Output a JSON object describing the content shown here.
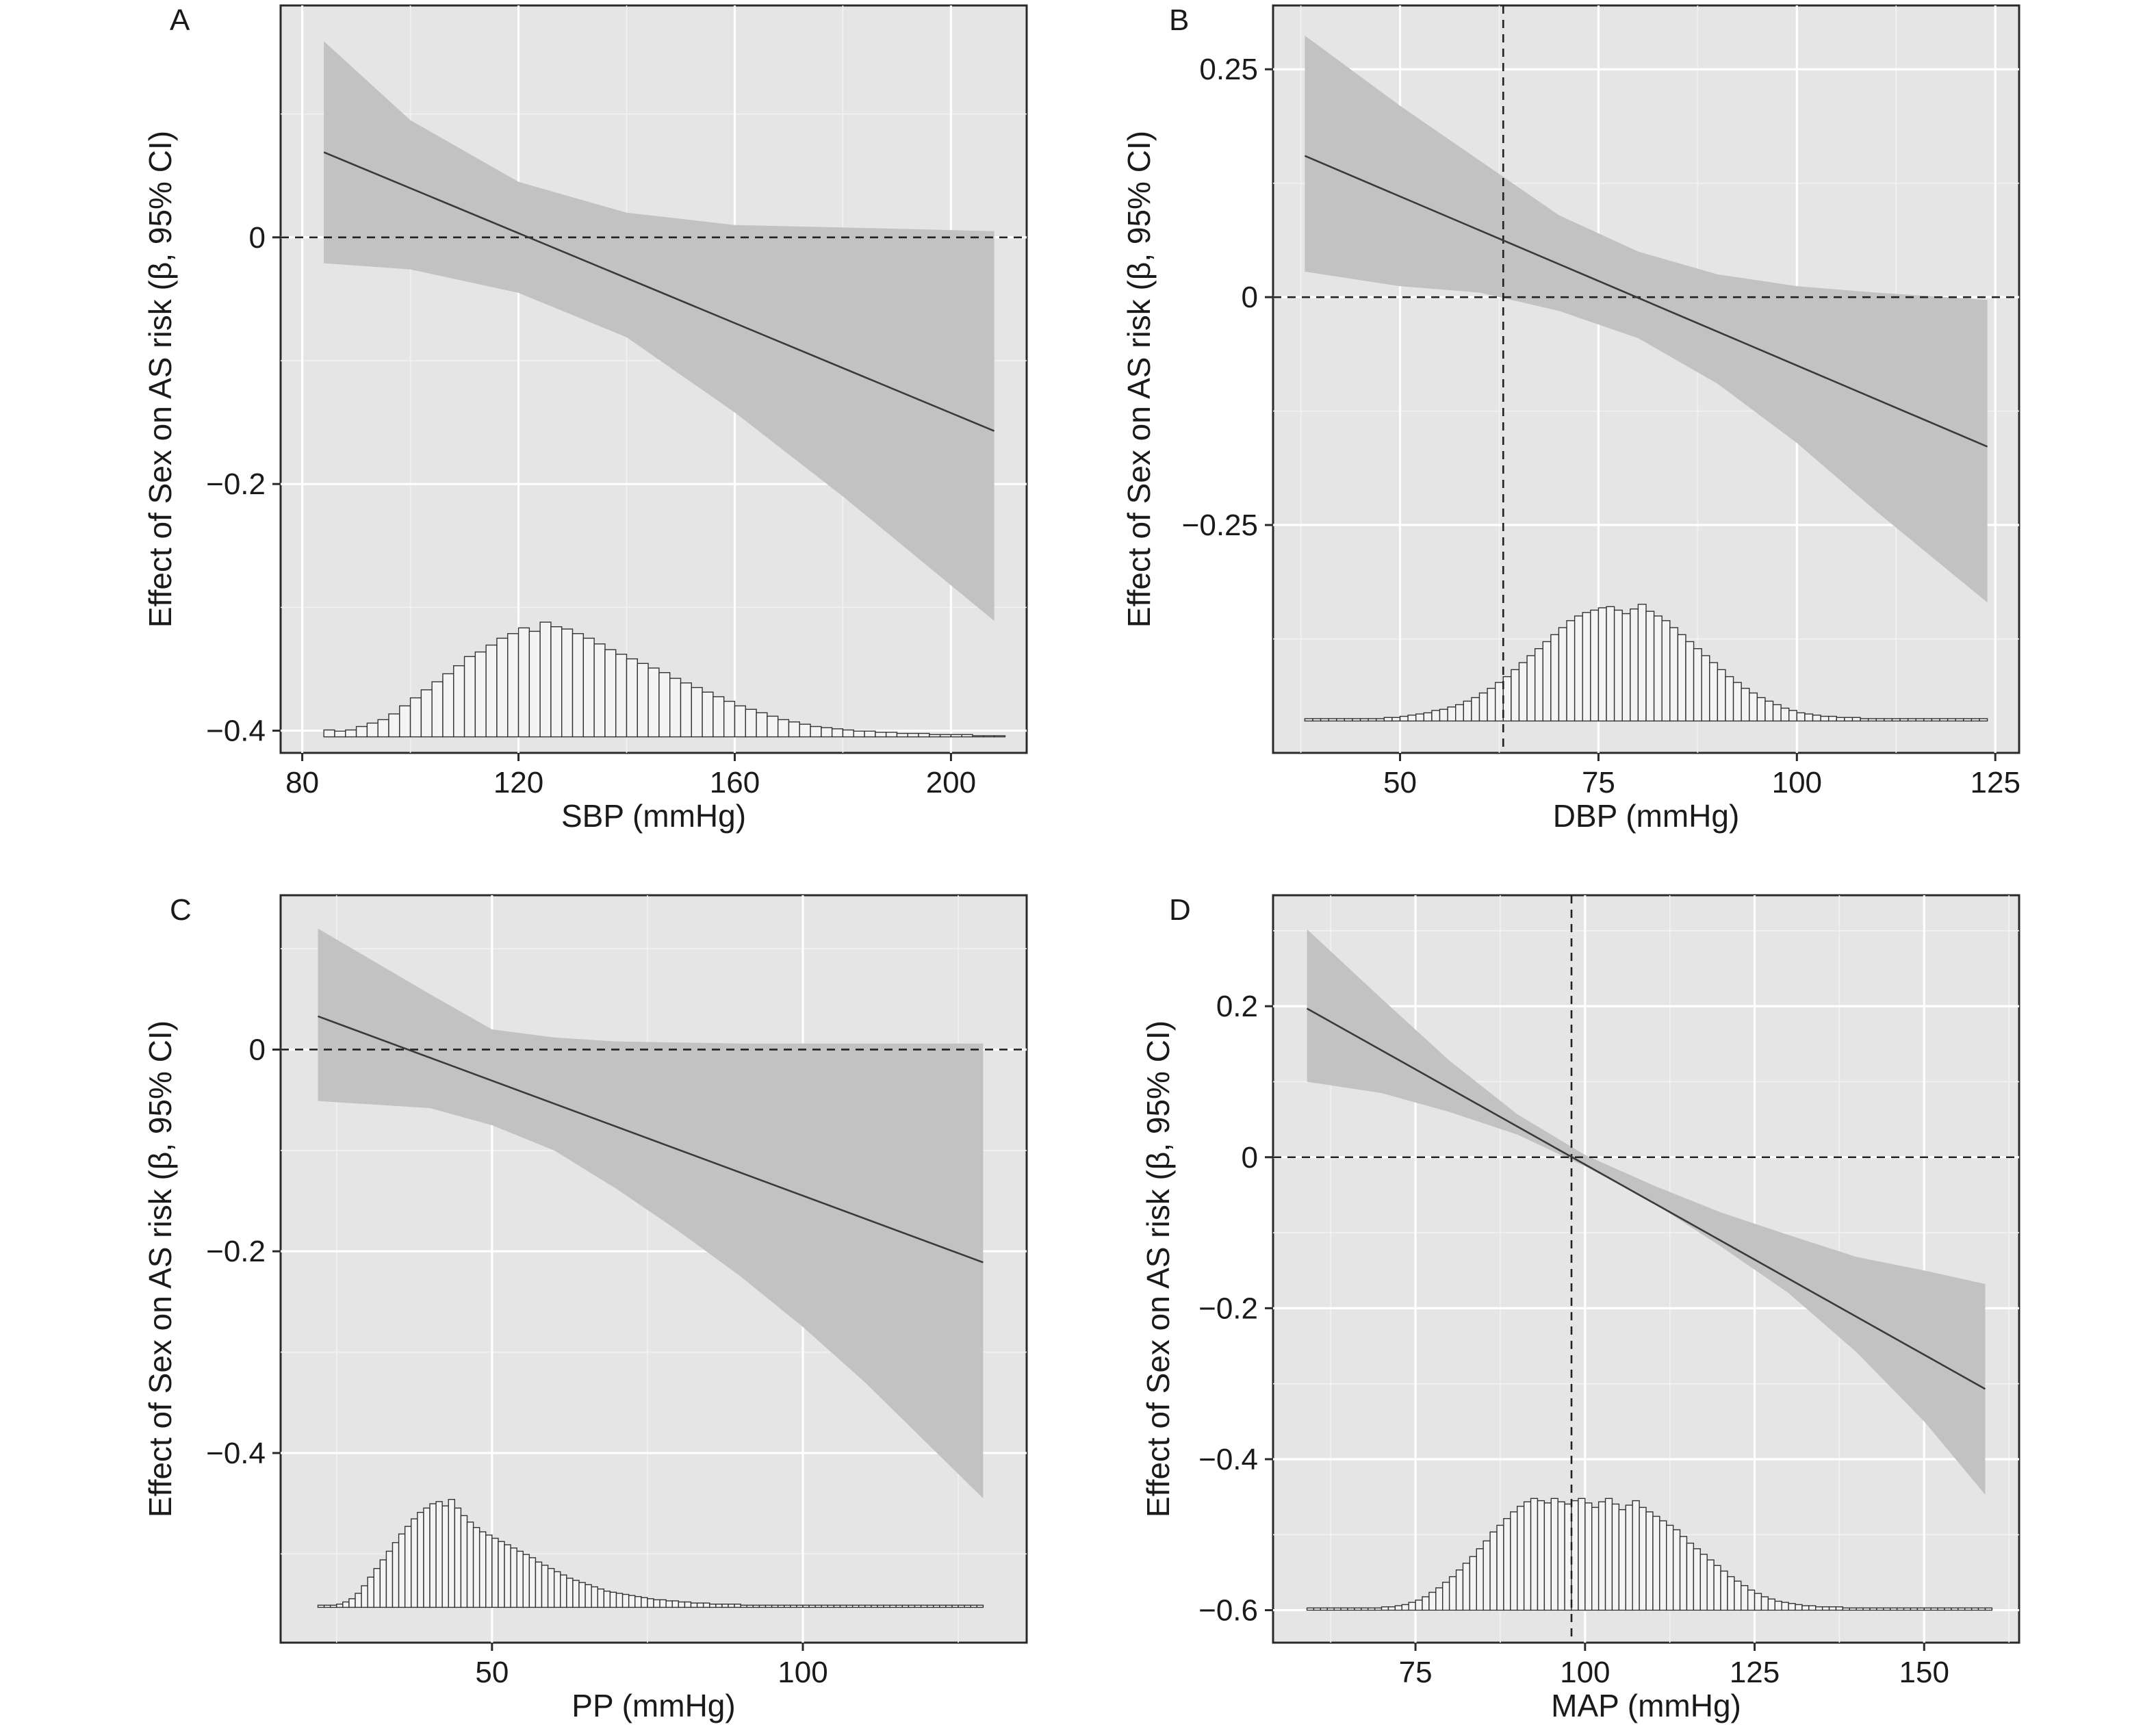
{
  "chart_data": [
    {
      "panel": "A",
      "type": "line",
      "xlabel": "SBP (mmHg)",
      "ylabel": "Effect of Sex on AS risk (β, 95% CI)",
      "xlim": [
        76,
        214
      ],
      "ylim": [
        -0.418,
        0.188
      ],
      "xticks": [
        80,
        120,
        160,
        200
      ],
      "yticks": [
        -0.4,
        -0.2,
        0
      ],
      "ytick_labels": [
        "−0.4",
        "−0.2",
        "0"
      ],
      "hline": 0,
      "vline": null,
      "series": [
        {
          "x": [
            84,
            208
          ],
          "values": [
            0.069,
            -0.157
          ]
        }
      ],
      "ci": {
        "x": [
          84,
          100,
          120,
          140,
          160,
          180,
          208
        ],
        "lower": [
          -0.021,
          -0.026,
          -0.045,
          -0.081,
          -0.142,
          -0.21,
          -0.311
        ],
        "upper": [
          0.159,
          0.095,
          0.045,
          0.02,
          0.01,
          0.008,
          0.005
        ]
      },
      "histogram": {
        "x_start": 84,
        "bin_width": 2,
        "baseline": -0.405,
        "peak_top": -0.312,
        "counts": [
          0.06,
          0.05,
          0.06,
          0.09,
          0.12,
          0.15,
          0.2,
          0.27,
          0.34,
          0.41,
          0.48,
          0.55,
          0.62,
          0.7,
          0.74,
          0.8,
          0.86,
          0.9,
          0.95,
          0.92,
          1.0,
          0.96,
          0.94,
          0.9,
          0.86,
          0.81,
          0.76,
          0.72,
          0.68,
          0.64,
          0.6,
          0.56,
          0.51,
          0.47,
          0.43,
          0.39,
          0.35,
          0.31,
          0.27,
          0.24,
          0.21,
          0.18,
          0.15,
          0.13,
          0.11,
          0.09,
          0.08,
          0.07,
          0.06,
          0.05,
          0.05,
          0.04,
          0.04,
          0.03,
          0.03,
          0.03,
          0.02,
          0.02,
          0.02,
          0.02,
          0.01,
          0.01,
          0.01
        ]
      }
    },
    {
      "panel": "B",
      "type": "line",
      "xlabel": "DBP (mmHg)",
      "ylabel": "Effect of Sex on AS risk (β, 95% CI)",
      "xlim": [
        34,
        128
      ],
      "ylim": [
        -0.5,
        0.32
      ],
      "xticks": [
        50,
        75,
        100,
        125
      ],
      "yticks": [
        -0.25,
        0,
        0.25
      ],
      "ytick_labels": [
        "−0.25",
        "0",
        "0.25"
      ],
      "hline": 0,
      "vline": 63,
      "series": [
        {
          "x": [
            38,
            124
          ],
          "values": [
            0.155,
            -0.164
          ]
        }
      ],
      "ci": {
        "x": [
          38,
          50,
          60,
          70,
          80,
          90,
          100,
          110,
          124
        ],
        "lower": [
          0.028,
          0.012,
          0.005,
          -0.015,
          -0.045,
          -0.095,
          -0.16,
          -0.235,
          -0.335
        ],
        "upper": [
          0.287,
          0.21,
          0.15,
          0.09,
          0.05,
          0.025,
          0.012,
          0.005,
          -0.003
        ]
      },
      "histogram": {
        "x_start": 38,
        "bin_width": 1,
        "baseline": -0.465,
        "peak_top": -0.337,
        "counts": [
          0.02,
          0.02,
          0.02,
          0.02,
          0.02,
          0.02,
          0.02,
          0.02,
          0.02,
          0.02,
          0.03,
          0.03,
          0.04,
          0.05,
          0.06,
          0.07,
          0.09,
          0.1,
          0.12,
          0.14,
          0.17,
          0.2,
          0.24,
          0.28,
          0.33,
          0.38,
          0.44,
          0.5,
          0.56,
          0.62,
          0.68,
          0.74,
          0.8,
          0.86,
          0.9,
          0.93,
          0.95,
          0.97,
          0.98,
          0.95,
          0.92,
          0.96,
          1.0,
          0.94,
          0.9,
          0.86,
          0.8,
          0.74,
          0.68,
          0.62,
          0.56,
          0.5,
          0.44,
          0.38,
          0.33,
          0.28,
          0.24,
          0.2,
          0.17,
          0.14,
          0.11,
          0.09,
          0.07,
          0.06,
          0.05,
          0.04,
          0.04,
          0.03,
          0.03,
          0.03,
          0.02,
          0.02,
          0.02,
          0.02,
          0.02,
          0.02,
          0.02,
          0.02,
          0.02,
          0.02,
          0.02,
          0.02,
          0.02,
          0.02,
          0.02,
          0.02
        ]
      }
    },
    {
      "panel": "C",
      "type": "line",
      "xlabel": "PP (mmHg)",
      "ylabel": "Effect of Sex on AS risk (β, 95% CI)",
      "xlim": [
        16,
        136
      ],
      "ylim": [
        -0.588,
        0.153
      ],
      "xticks": [
        50,
        100
      ],
      "yticks": [
        -0.4,
        -0.2,
        0
      ],
      "ytick_labels": [
        "−0.4",
        "−0.2",
        "0"
      ],
      "hline": 0,
      "vline": null,
      "series": [
        {
          "x": [
            22,
            129
          ],
          "values": [
            0.033,
            -0.211
          ]
        }
      ],
      "ci": {
        "x": [
          22,
          40,
          50,
          60,
          70,
          80,
          90,
          100,
          110,
          129
        ],
        "lower": [
          -0.051,
          -0.058,
          -0.075,
          -0.1,
          -0.138,
          -0.18,
          -0.225,
          -0.275,
          -0.33,
          -0.445
        ],
        "upper": [
          0.12,
          0.055,
          0.02,
          0.012,
          0.008,
          0.007,
          0.006,
          0.006,
          0.006,
          0.006
        ]
      },
      "histogram": {
        "x_start": 22,
        "bin_width": 1,
        "baseline": -0.553,
        "peak_top": -0.446,
        "counts": [
          0.02,
          0.02,
          0.02,
          0.03,
          0.05,
          0.08,
          0.13,
          0.2,
          0.28,
          0.36,
          0.44,
          0.52,
          0.6,
          0.68,
          0.75,
          0.82,
          0.88,
          0.92,
          0.96,
          0.98,
          0.94,
          1.0,
          0.92,
          0.85,
          0.79,
          0.74,
          0.7,
          0.67,
          0.64,
          0.61,
          0.58,
          0.55,
          0.52,
          0.49,
          0.46,
          0.42,
          0.39,
          0.36,
          0.33,
          0.3,
          0.27,
          0.25,
          0.23,
          0.21,
          0.19,
          0.17,
          0.15,
          0.14,
          0.13,
          0.12,
          0.11,
          0.1,
          0.09,
          0.08,
          0.07,
          0.07,
          0.06,
          0.06,
          0.05,
          0.05,
          0.04,
          0.04,
          0.04,
          0.03,
          0.03,
          0.03,
          0.03,
          0.03,
          0.02,
          0.02,
          0.02,
          0.02,
          0.02,
          0.02,
          0.02,
          0.02,
          0.02,
          0.02,
          0.02,
          0.02,
          0.02,
          0.02,
          0.02,
          0.02,
          0.02,
          0.02,
          0.02,
          0.02,
          0.02,
          0.02,
          0.02,
          0.02,
          0.02,
          0.02,
          0.02,
          0.02,
          0.02,
          0.02,
          0.02,
          0.02,
          0.02,
          0.02,
          0.02,
          0.02,
          0.02,
          0.02,
          0.02
        ]
      }
    },
    {
      "panel": "D",
      "type": "line",
      "xlabel": "MAP (mmHg)",
      "ylabel": "Effect of Sex on AS risk (β, 95% CI)",
      "xlim": [
        54,
        164
      ],
      "ylim": [
        -0.643,
        0.347
      ],
      "xticks": [
        75,
        100,
        125,
        150
      ],
      "yticks": [
        -0.6,
        -0.4,
        -0.2,
        0,
        0.2
      ],
      "ytick_labels": [
        "−0.6",
        "−0.4",
        "−0.2",
        "0",
        "0.2"
      ],
      "hline": 0,
      "vline": 98,
      "series": [
        {
          "x": [
            59,
            159
          ],
          "values": [
            0.197,
            -0.307
          ]
        }
      ],
      "ci": {
        "x": [
          59,
          70,
          80,
          90,
          100,
          110,
          120,
          130,
          140,
          150,
          159
        ],
        "lower": [
          0.1,
          0.085,
          0.06,
          0.03,
          -0.012,
          -0.06,
          -0.118,
          -0.18,
          -0.258,
          -0.35,
          -0.447
        ],
        "upper": [
          0.302,
          0.21,
          0.128,
          0.057,
          0.003,
          -0.037,
          -0.073,
          -0.103,
          -0.132,
          -0.15,
          -0.168
        ]
      },
      "histogram": {
        "x_start": 59,
        "bin_width": 1,
        "baseline": -0.6,
        "peak_top": -0.452,
        "counts": [
          0.02,
          0.02,
          0.02,
          0.02,
          0.02,
          0.02,
          0.02,
          0.02,
          0.02,
          0.02,
          0.02,
          0.03,
          0.03,
          0.04,
          0.05,
          0.07,
          0.09,
          0.12,
          0.16,
          0.2,
          0.25,
          0.3,
          0.36,
          0.42,
          0.48,
          0.55,
          0.62,
          0.7,
          0.76,
          0.82,
          0.88,
          0.93,
          0.97,
          1.0,
          0.98,
          0.96,
          1.0,
          0.97,
          0.95,
          0.98,
          1.0,
          0.96,
          0.92,
          0.97,
          1.0,
          0.95,
          0.9,
          0.94,
          0.98,
          0.92,
          0.88,
          0.84,
          0.8,
          0.76,
          0.72,
          0.66,
          0.6,
          0.55,
          0.5,
          0.45,
          0.4,
          0.35,
          0.3,
          0.26,
          0.22,
          0.18,
          0.15,
          0.12,
          0.1,
          0.08,
          0.07,
          0.06,
          0.05,
          0.04,
          0.04,
          0.03,
          0.03,
          0.03,
          0.03,
          0.02,
          0.02,
          0.02,
          0.02,
          0.02,
          0.02,
          0.02,
          0.02,
          0.02,
          0.02,
          0.02,
          0.02,
          0.02,
          0.02,
          0.02,
          0.02,
          0.02,
          0.02,
          0.02,
          0.02,
          0.02,
          0.02
        ]
      }
    }
  ]
}
